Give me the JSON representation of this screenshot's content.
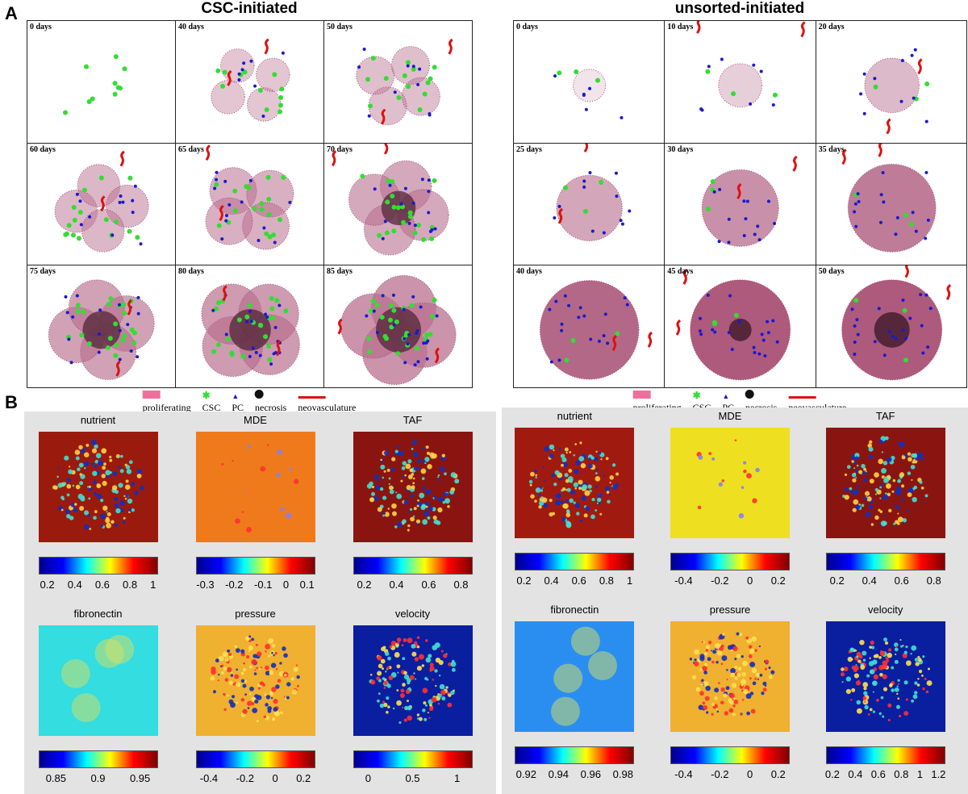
{
  "panelA": {
    "label": "A",
    "groups": [
      {
        "title": "CSC-initiated",
        "tiles": [
          "0 days",
          "40 days",
          "50 days",
          "60 days",
          "65 days",
          "70 days",
          "75 days",
          "80 days",
          "85 days"
        ],
        "legend": [
          "proliferating",
          "CSC",
          "PC",
          "necrosis",
          "neovasculature"
        ]
      },
      {
        "title": "unsorted-initiated",
        "tiles": [
          "0 days",
          "10 days",
          "20 days",
          "25 days",
          "30 days",
          "35 days",
          "40 days",
          "45 days",
          "50 days"
        ],
        "legend": [
          "proliferating",
          "CSC",
          "PC",
          "necrosis",
          "neovasculature"
        ]
      }
    ]
  },
  "panelB": {
    "label": "B",
    "groups": [
      {
        "maps": [
          {
            "title": "nutrient",
            "ticks": [
              "0.2",
              "0.4",
              "0.6",
              "0.8",
              "1"
            ]
          },
          {
            "title": "MDE",
            "ticks": [
              "-0.3",
              "-0.2",
              "-0.1",
              "0",
              "0.1"
            ]
          },
          {
            "title": "TAF",
            "ticks": [
              "0.2",
              "0.4",
              "0.6",
              "0.8"
            ]
          },
          {
            "title": "fibronectin",
            "ticks": [
              "0.85",
              "0.9",
              "0.95"
            ]
          },
          {
            "title": "pressure",
            "ticks": [
              "-0.4",
              "-0.2",
              "0",
              "0.2"
            ]
          },
          {
            "title": "velocity",
            "ticks": [
              "0",
              "0.5",
              "1"
            ]
          }
        ]
      },
      {
        "maps": [
          {
            "title": "nutrient",
            "ticks": [
              "0.2",
              "0.4",
              "0.6",
              "0.8",
              "1"
            ]
          },
          {
            "title": "MDE",
            "ticks": [
              "-0.4",
              "-0.2",
              "0",
              "0.2"
            ]
          },
          {
            "title": "TAF",
            "ticks": [
              "0.2",
              "0.4",
              "0.6",
              "0.8"
            ]
          },
          {
            "title": "fibronectin",
            "ticks": [
              "0.92",
              "0.94",
              "0.96",
              "0.98"
            ]
          },
          {
            "title": "pressure",
            "ticks": [
              "-0.4",
              "-0.2",
              "0",
              "0.2"
            ]
          },
          {
            "title": "velocity",
            "ticks": [
              "0.2",
              "0.4",
              "0.6",
              "0.8",
              "1",
              "1.2"
            ]
          }
        ]
      }
    ]
  }
}
